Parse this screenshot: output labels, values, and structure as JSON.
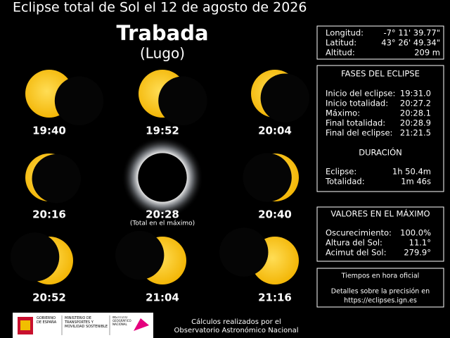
{
  "header": {
    "title": "Eclipse total de Sol el 12 de agosto de 2026"
  },
  "location": {
    "name": "Trabada",
    "region": "(Lugo)"
  },
  "sequence": {
    "times": [
      "19:40",
      "19:52",
      "20:04",
      "20:16",
      "20:28",
      "20:40",
      "20:52",
      "21:04",
      "21:16"
    ],
    "note": "(Total en el máximo)"
  },
  "coordinates": {
    "rows": [
      [
        "Longitud:",
        "-7° 11' 39.77\""
      ],
      [
        "Latitud:",
        "43° 26' 49.34\""
      ],
      [
        "Altitud:",
        "209 m"
      ]
    ]
  },
  "phases_panel": {
    "title": "FASES DEL ECLIPSE",
    "rows": [
      [
        "Inicio del eclipse:",
        "19:31.0"
      ],
      [
        "Inicio totalidad:",
        "20:27.2"
      ],
      [
        "Máximo:",
        "20:28.1"
      ],
      [
        "Final totalidad:",
        "20:28.9"
      ],
      [
        "Final del eclipse:",
        "21:21.5"
      ]
    ],
    "duration_title": "DURACIÓN",
    "duration_rows": [
      [
        "Eclipse:",
        "1h 50.4m"
      ],
      [
        "Totalidad:",
        "1m 46s"
      ]
    ]
  },
  "maximum_panel": {
    "title": "VALORES EN EL MÁXIMO",
    "rows": [
      [
        "Oscurecimiento:",
        "100.0%"
      ],
      [
        "Altura del Sol:",
        "11.1°"
      ],
      [
        "Acimut del Sol:",
        "279.9°"
      ]
    ]
  },
  "info_panel": {
    "lines": [
      "Tiempos en hora oficial",
      "Detalles sobre la precisión en",
      "https://eclipses.ign.es"
    ]
  },
  "footer": {
    "credit": [
      "Cálculos realizados por el",
      "Observatorio Astronómico Nacional"
    ],
    "logos": [
      "GOBIERNO DE ESPAÑA",
      "MINISTERIO DE TRANSPORTES Y MOVILIDAD SOSTENIBLE",
      "INSTITUTO GEOGRÁFICO NACIONAL"
    ]
  }
}
